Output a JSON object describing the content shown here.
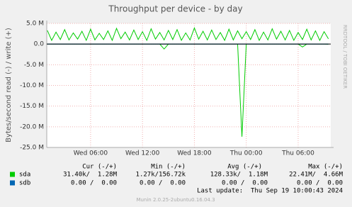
{
  "chart_data": {
    "type": "line",
    "title": "Throughput per device - by day",
    "y_label": "Bytes/second read (-) / write (+)",
    "side_text": "RRDTOOL / TOBI OETIKER",
    "grid": true,
    "xlim": [
      0.93,
      33.77
    ],
    "xticks": [
      {
        "value": 6,
        "label": "Wed 06:00"
      },
      {
        "value": 12,
        "label": "Wed 12:00"
      },
      {
        "value": 18,
        "label": "Wed 18:00"
      },
      {
        "value": 24,
        "label": "Thu 00:00"
      },
      {
        "value": 30,
        "label": "Thu 06:00"
      }
    ],
    "ylim": [
      -25000000,
      5000000
    ],
    "yticks": [
      {
        "value": 5000000,
        "label": "5.0 M"
      },
      {
        "value": 0,
        "label": "0.0"
      },
      {
        "value": -5000000,
        "label": "-5.0 M"
      },
      {
        "value": -10000000,
        "label": "-10.0 M"
      },
      {
        "value": -15000000,
        "label": "-15.0 M"
      },
      {
        "value": -20000000,
        "label": "-20.0 M"
      },
      {
        "value": -25000000,
        "label": "-25.0 M"
      }
    ],
    "x": [
      1,
      1.5,
      2,
      2.5,
      3,
      3.5,
      4,
      4.5,
      5,
      5.5,
      6,
      6.5,
      7,
      7.5,
      8,
      8.5,
      9,
      9.5,
      10,
      10.5,
      11,
      11.5,
      12,
      12.5,
      13,
      13.5,
      14,
      14.5,
      15,
      15.5,
      16,
      16.5,
      17,
      17.5,
      18,
      18.5,
      19,
      19.5,
      20,
      20.5,
      21,
      21.5,
      22,
      22.5,
      23,
      23.5,
      24,
      24.5,
      25,
      25.5,
      26,
      26.5,
      27,
      27.5,
      28,
      28.5,
      29,
      29.5,
      30,
      30.5,
      31,
      31.5,
      32,
      32.5,
      33,
      33.5
    ],
    "stat_columns": [
      "Cur (-/+)",
      "Min (-/+)",
      "Avg (-/+)",
      "Max (-/+)"
    ],
    "series": [
      {
        "name": "sda",
        "color": "#00cc00",
        "write": [
          3300000,
          900000,
          2900000,
          1100000,
          3500000,
          1000000,
          2700000,
          1200000,
          3100000,
          900000,
          3600000,
          1000000,
          2600000,
          1100000,
          3200000,
          900000,
          3800000,
          1300000,
          2900000,
          1000000,
          3400000,
          1100000,
          3000000,
          900000,
          3700000,
          1200000,
          2800000,
          1000000,
          3300000,
          1100000,
          3500000,
          900000,
          2700000,
          1000000,
          3900000,
          1200000,
          3100000,
          1000000,
          3400000,
          1100000,
          2800000,
          900000,
          3600000,
          1000000,
          3200000,
          1300000,
          3000000,
          1100000,
          3500000,
          900000,
          2900000,
          1000000,
          3700000,
          1200000,
          3100000,
          1000000,
          3300000,
          900000,
          2800000,
          1100000,
          3600000,
          1000000,
          3200000,
          900000,
          3000000,
          1280000
        ],
        "read": [
          0,
          0,
          0,
          0,
          0,
          0,
          0,
          0,
          0,
          0,
          0,
          0,
          0,
          0,
          0,
          0,
          0,
          0,
          0,
          0,
          0,
          0,
          0,
          0,
          0,
          0,
          0,
          -1200000,
          0,
          0,
          0,
          0,
          0,
          0,
          0,
          0,
          0,
          0,
          0,
          0,
          0,
          0,
          0,
          0,
          0,
          -22410000,
          0,
          0,
          0,
          0,
          0,
          0,
          0,
          0,
          0,
          0,
          0,
          0,
          0,
          -700000,
          0,
          0,
          0,
          0,
          0,
          -31400
        ],
        "stats": [
          "31.40k/  1.28M",
          "1.27k/156.72k",
          "128.33k/  1.18M",
          "22.41M/  4.66M"
        ]
      },
      {
        "name": "sdb",
        "color": "#0066b3",
        "write": [
          0,
          0,
          0,
          0,
          0,
          0,
          0,
          0,
          0,
          0,
          0,
          0,
          0,
          0,
          0,
          0,
          0,
          0,
          0,
          0,
          0,
          0,
          0,
          0,
          0,
          0,
          0,
          0,
          0,
          0,
          0,
          0,
          0,
          0,
          0,
          0,
          0,
          0,
          0,
          0,
          0,
          0,
          0,
          0,
          0,
          0,
          0,
          0,
          0,
          0,
          0,
          0,
          0,
          0,
          0,
          0,
          0,
          0,
          0,
          0,
          0,
          0,
          0,
          0,
          0,
          0
        ],
        "read": [
          0,
          0,
          0,
          0,
          0,
          0,
          0,
          0,
          0,
          0,
          0,
          0,
          0,
          0,
          0,
          0,
          0,
          0,
          0,
          0,
          0,
          0,
          0,
          0,
          0,
          0,
          0,
          0,
          0,
          0,
          0,
          0,
          0,
          0,
          0,
          0,
          0,
          0,
          0,
          0,
          0,
          0,
          0,
          0,
          0,
          0,
          0,
          0,
          0,
          0,
          0,
          0,
          0,
          0,
          0,
          0,
          0,
          0,
          0,
          0,
          0,
          0,
          0,
          0,
          0,
          0
        ],
        "stats": [
          "0.00 /  0.00",
          "0.00 /  0.00",
          "0.00 /  0.00",
          "0.00 /  0.00"
        ]
      }
    ],
    "last_update": "Last update:  Thu Sep 19 10:00:43 2024",
    "footer": "Munin 2.0.25-2ubuntu0.16.04.3"
  }
}
